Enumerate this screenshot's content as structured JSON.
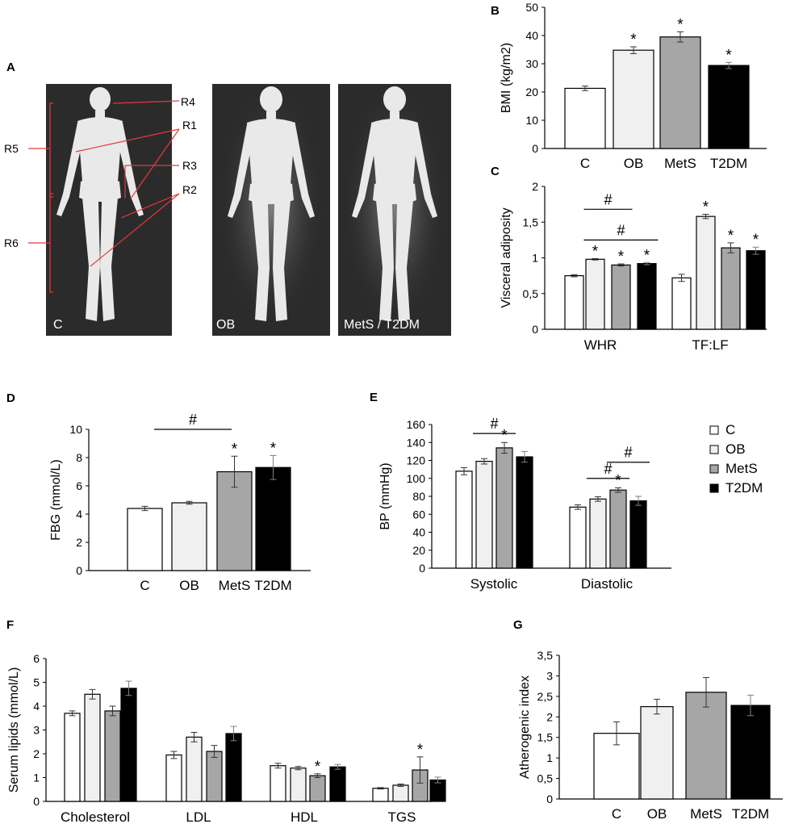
{
  "panel_labels": {
    "a": "A",
    "b": "B",
    "c": "C",
    "d": "D",
    "e": "E",
    "f": "F",
    "g": "G"
  },
  "scans": {
    "labels": [
      "C",
      "OB",
      "MetS / T2DM"
    ],
    "regions": [
      "R4",
      "R1",
      "R5",
      "R3",
      "R2",
      "R6"
    ]
  },
  "legend": {
    "items": [
      {
        "label": "C",
        "color": "#ffffff"
      },
      {
        "label": "OB",
        "color": "#f0f0f0"
      },
      {
        "label": "MetS",
        "color": "#a6a6a6"
      },
      {
        "label": "T2DM",
        "color": "#000000"
      }
    ]
  },
  "colors": {
    "C": "#ffffff",
    "OB": "#f0f0f0",
    "MetS": "#a6a6a6",
    "T2DM": "#000000",
    "edge": "#000000"
  },
  "chart_data": [
    {
      "id": "B",
      "type": "bar",
      "ylabel": "BMI (kg/m2)",
      "ylim": [
        0,
        50
      ],
      "yticks": [
        "0",
        "10",
        "20",
        "30",
        "40",
        "50"
      ],
      "categories": [
        "C",
        "OB",
        "MetS",
        "T2DM"
      ],
      "values": [
        21.3,
        34.8,
        39.5,
        29.4
      ],
      "errors": [
        0.8,
        1.2,
        1.8,
        1.1
      ],
      "star": [
        false,
        true,
        true,
        true
      ]
    },
    {
      "id": "C",
      "type": "bar",
      "ylabel": "Visceral adiposity",
      "ylim": [
        0,
        2
      ],
      "yticks": [
        "0",
        "0,5",
        "1",
        "1,5",
        "2"
      ],
      "groups": [
        "WHR",
        "TF:LF"
      ],
      "series": [
        {
          "name": "C",
          "values": [
            0.75,
            0.72
          ],
          "errors": [
            0.015,
            0.05
          ]
        },
        {
          "name": "OB",
          "values": [
            0.98,
            1.58
          ],
          "errors": [
            0.01,
            0.03
          ]
        },
        {
          "name": "MetS",
          "values": [
            0.9,
            1.14
          ],
          "errors": [
            0.015,
            0.07
          ]
        },
        {
          "name": "T2DM",
          "values": [
            0.92,
            1.1
          ],
          "errors": [
            0.015,
            0.05
          ]
        }
      ],
      "stars": [
        [
          false,
          true,
          true,
          true
        ],
        [
          false,
          true,
          true,
          true
        ]
      ],
      "brackets": [
        {
          "group": 0,
          "from": 1,
          "to": 2,
          "label": "#",
          "level": 1.68
        },
        {
          "group": 0,
          "from": 1,
          "to": 3,
          "label": "#",
          "level": 1.25
        }
      ]
    },
    {
      "id": "D",
      "type": "bar",
      "ylabel": "FBG (mmol/L)",
      "ylim": [
        0,
        10
      ],
      "yticks": [
        "0",
        "2",
        "4",
        "6",
        "8",
        "10"
      ],
      "categories": [
        "C",
        "OB",
        "MetS",
        "T2DM"
      ],
      "values": [
        4.4,
        4.8,
        7.0,
        7.3
      ],
      "errors": [
        0.15,
        0.1,
        1.1,
        0.85
      ],
      "star": [
        false,
        false,
        true,
        true
      ],
      "brackets": [
        {
          "from": 1,
          "to": 2,
          "label": "#",
          "level": 10.0
        }
      ]
    },
    {
      "id": "E",
      "type": "bar",
      "ylabel": "BP (mmHg)",
      "ylim": [
        0,
        160
      ],
      "yticks": [
        "0",
        "20",
        "40",
        "60",
        "80",
        "100",
        "120",
        "140",
        "160"
      ],
      "groups": [
        "Systolic",
        "Diastolic"
      ],
      "series": [
        {
          "name": "C",
          "values": [
            108,
            68
          ],
          "errors": [
            4,
            2.5
          ]
        },
        {
          "name": "OB",
          "values": [
            119,
            77
          ],
          "errors": [
            3,
            2.5
          ]
        },
        {
          "name": "MetS",
          "values": [
            134,
            87
          ],
          "errors": [
            6,
            2.5
          ]
        },
        {
          "name": "T2DM",
          "values": [
            124,
            75
          ],
          "errors": [
            6,
            5
          ]
        }
      ],
      "stars": [
        [
          false,
          false,
          true,
          false
        ],
        [
          false,
          false,
          true,
          false
        ]
      ],
      "brackets": [
        {
          "group": 0,
          "from": 1,
          "to": 2,
          "label": "#",
          "level": 150
        },
        {
          "group": 1,
          "from": 1,
          "to": 2,
          "label": "#",
          "level": 100
        },
        {
          "group": 1,
          "from": 2,
          "to": 3,
          "label": "#",
          "level": 118
        }
      ]
    },
    {
      "id": "F",
      "type": "bar",
      "ylabel": "Serum lipids (mmol/L)",
      "ylim": [
        0,
        6
      ],
      "yticks": [
        "0",
        "1",
        "2",
        "3",
        "4",
        "5",
        "6"
      ],
      "groups": [
        "Cholesterol",
        "LDL",
        "HDL",
        "TGS"
      ],
      "series": [
        {
          "name": "C",
          "values": [
            3.7,
            1.95,
            1.5,
            0.55
          ],
          "errors": [
            0.1,
            0.15,
            0.1,
            0.03
          ]
        },
        {
          "name": "OB",
          "values": [
            4.5,
            2.7,
            1.4,
            0.68
          ],
          "errors": [
            0.2,
            0.2,
            0.07,
            0.05
          ]
        },
        {
          "name": "MetS",
          "values": [
            3.8,
            2.1,
            1.08,
            1.32
          ],
          "errors": [
            0.2,
            0.25,
            0.08,
            0.55
          ]
        },
        {
          "name": "T2DM",
          "values": [
            4.75,
            2.85,
            1.45,
            0.9
          ],
          "errors": [
            0.3,
            0.3,
            0.1,
            0.12
          ]
        }
      ],
      "stars": [
        [
          false,
          false,
          false,
          false
        ],
        [
          false,
          false,
          false,
          false
        ],
        [
          false,
          false,
          true,
          false
        ],
        [
          false,
          false,
          true,
          false
        ]
      ]
    },
    {
      "id": "G",
      "type": "bar",
      "ylabel": "Atherogenic index",
      "ylim": [
        0,
        3.5
      ],
      "yticks": [
        "0",
        "0,5",
        "1",
        "1,5",
        "2",
        "2,5",
        "3",
        "3,5"
      ],
      "categories": [
        "C",
        "OB",
        "MetS",
        "T2DM"
      ],
      "values": [
        1.6,
        2.25,
        2.6,
        2.28
      ],
      "errors": [
        0.28,
        0.18,
        0.36,
        0.25
      ],
      "star": [
        false,
        false,
        false,
        false
      ]
    }
  ]
}
